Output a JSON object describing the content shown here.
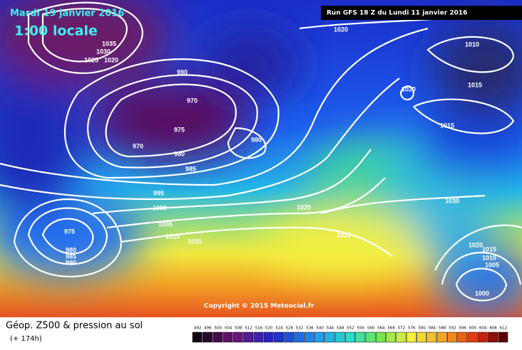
{
  "header": {
    "date": "Mardi 19 janvier 2016",
    "time": "1:00 locale",
    "run": "Run GFS 18 Z du Lundi 11 janvier 2016"
  },
  "isobar_labels": [
    "1035",
    "1030",
    "1025",
    "1020",
    "990",
    "970",
    "975",
    "970",
    "980",
    "985",
    "980",
    "995",
    "1000",
    "1005",
    "1010",
    "1015",
    "975",
    "980",
    "985",
    "990",
    "1020",
    "1025",
    "1020",
    "1010",
    "1015",
    "1020",
    "1015",
    "1030",
    "1020",
    "1015",
    "1010",
    "1005",
    "1000"
  ],
  "copyright": "Copyright © 2015 Meteociel.fr",
  "legend": {
    "title": "Géop. Z500 & pression au sol",
    "lead": "(+ 174h)",
    "scale": [
      492,
      496,
      500,
      504,
      508,
      512,
      516,
      520,
      524,
      528,
      532,
      536,
      540,
      544,
      548,
      552,
      556,
      560,
      564,
      568,
      572,
      576,
      580,
      584,
      588,
      592,
      596,
      600,
      604,
      608,
      612
    ]
  }
}
